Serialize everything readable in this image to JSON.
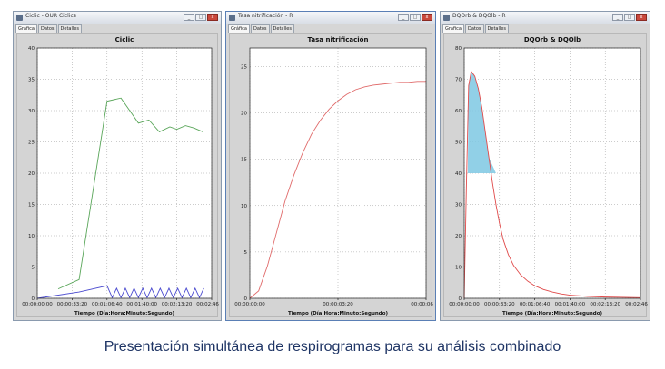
{
  "windows": [
    {
      "title": "Ciclic - OUR Ciclics",
      "tabs": [
        "Gráfica",
        "Datos",
        "Detalles"
      ],
      "chart_data": {
        "type": "line",
        "title": "Ciclic",
        "xlabel": "Tiempo (Día:Hora:Minuto:Segundo)",
        "x_ticks": [
          "00:00:00:00",
          "00:00:33:20",
          "00:01:06:40",
          "00:01:40:00",
          "00:02:13:20",
          "00:02:46:40"
        ],
        "xlim": [
          0,
          10000
        ],
        "ylim": [
          0,
          40
        ],
        "y_ticks": [
          0,
          5,
          10,
          15,
          20,
          25,
          30,
          35,
          40
        ],
        "series": [
          {
            "color": "#5aa65a",
            "x": [
              1200,
              2400,
              4000,
              4800,
              5800,
              6400,
              7000,
              7600,
              8000,
              8500,
              9000,
              9500
            ],
            "y": [
              1.5,
              3,
              31.5,
              32,
              28,
              28.5,
              26.6,
              27.4,
              27,
              27.6,
              27.2,
              26.6
            ]
          },
          {
            "color": "#4b4bcf",
            "x": [
              0,
              2400,
              4000,
              4300,
              4550,
              4800,
              5050,
              5300,
              5550,
              5800,
              6050,
              6300,
              6550,
              6800,
              7050,
              7300,
              7550,
              7800,
              8050,
              8300,
              8550,
              8800,
              9050,
              9300,
              9550
            ],
            "y": [
              0,
              1,
              2,
              0.1,
              1.6,
              0.1,
              1.6,
              0.1,
              1.6,
              0.1,
              1.6,
              0.1,
              1.6,
              0.1,
              1.6,
              0.1,
              1.6,
              0.1,
              1.6,
              0.1,
              1.6,
              0.1,
              1.6,
              0.1,
              1.6
            ]
          }
        ]
      }
    },
    {
      "title": "Tasa nitrificación - R",
      "tabs": [
        "Gráfica",
        "Datos",
        "Detalles"
      ],
      "chart_data": {
        "type": "line",
        "title": "Tasa nitrificación",
        "xlabel": "Tiempo (Día:Hora:Minuto:Segundo)",
        "x_ticks": [
          "00:00:00:00",
          "00:00:03:20",
          "00:00:06:40"
        ],
        "xlim": [
          0,
          800
        ],
        "ylim": [
          0,
          27
        ],
        "y_ticks": [
          0,
          5,
          10,
          15,
          20,
          25
        ],
        "series": [
          {
            "color": "#e06a6a",
            "x": [
              0,
              40,
              80,
              120,
              160,
              200,
              240,
              280,
              320,
              360,
              400,
              440,
              480,
              520,
              560,
              600,
              640,
              680,
              720,
              760,
              800
            ],
            "y": [
              0,
              0.8,
              3.5,
              7,
              10.5,
              13.3,
              15.7,
              17.7,
              19.2,
              20.4,
              21.3,
              22,
              22.5,
              22.8,
              23,
              23.1,
              23.2,
              23.3,
              23.3,
              23.4,
              23.4
            ]
          }
        ]
      }
    },
    {
      "title": "DQOrb & DQOlb - R",
      "tabs": [
        "Gráfica",
        "Datos",
        "Detalles"
      ],
      "chart_data": {
        "type": "line",
        "title": "DQOrb & DQOlb",
        "xlabel": "Tiempo (Día:Hora:Minuto:Segundo)",
        "x_ticks": [
          "00:00:00:00",
          "00:00:33:20",
          "00:01:06:40",
          "00:01:40:00",
          "00:02:13:20",
          "00:02:46:40"
        ],
        "xlim": [
          0,
          10000
        ],
        "ylim": [
          0,
          80
        ],
        "y_ticks": [
          0,
          10,
          20,
          30,
          40,
          50,
          60,
          70,
          80
        ],
        "fill": {
          "color": "#7ec8e3",
          "x_range": [
            200,
            1800
          ],
          "y_floor": 40
        },
        "series": [
          {
            "color": "#e04a4a",
            "x": [
              0,
              120,
              250,
              400,
              600,
              800,
              1000,
              1200,
              1400,
              1600,
              1800,
              2000,
              2200,
              2500,
              2800,
              3200,
              3600,
              4000,
              4500,
              5000,
              5500,
              6000,
              7000,
              8000,
              9000,
              10000
            ],
            "y": [
              0,
              35,
              68,
              72.5,
              71,
              67,
              61,
              53,
              45,
              37,
              30,
              24,
              19,
              14,
              10.5,
              7.5,
              5.5,
              4,
              2.8,
              2,
              1.4,
              1,
              0.6,
              0.4,
              0.3,
              0.2
            ]
          }
        ]
      }
    }
  ],
  "caption": "Presentación simultánea de respirogramas para su análisis combinado"
}
